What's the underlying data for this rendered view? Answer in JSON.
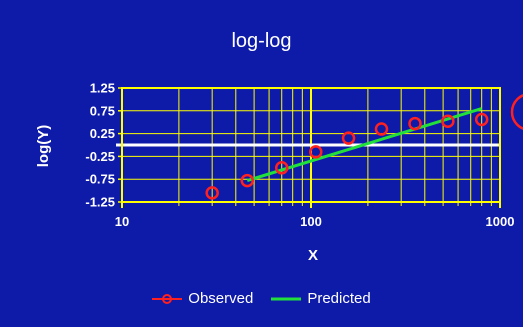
{
  "chart_data": {
    "type": "line",
    "title": "log-log",
    "xlabel": "X",
    "ylabel": "log(Y)",
    "x_scale": "log",
    "xlim": [
      10,
      1000
    ],
    "ylim": [
      -1.25,
      1.25
    ],
    "x_ticks": [
      "10",
      "100",
      "1000"
    ],
    "y_ticks": [
      "1.25",
      "0.75",
      "0.25",
      "-0.25",
      "-0.75",
      "-1.25"
    ],
    "grid": true,
    "legend": "bottom",
    "series": [
      {
        "name": "Observed",
        "marker": "circle",
        "color": "#ff2020",
        "x": [
          30,
          46,
          70,
          106,
          158,
          236,
          355,
          530,
          800
        ],
        "y": [
          -1.05,
          -0.78,
          -0.5,
          -0.15,
          0.15,
          0.35,
          0.47,
          0.52,
          0.56
        ]
      },
      {
        "name": "Predicted",
        "color": "#22e03c",
        "x": [
          46,
          800
        ],
        "y": [
          -0.78,
          0.8
        ]
      }
    ]
  },
  "colors": {
    "background": "#0e1aa8",
    "plot_border": "#ffff00",
    "grid": "#ffff00",
    "text": "#ffffff",
    "ticks": "#ffffff"
  }
}
